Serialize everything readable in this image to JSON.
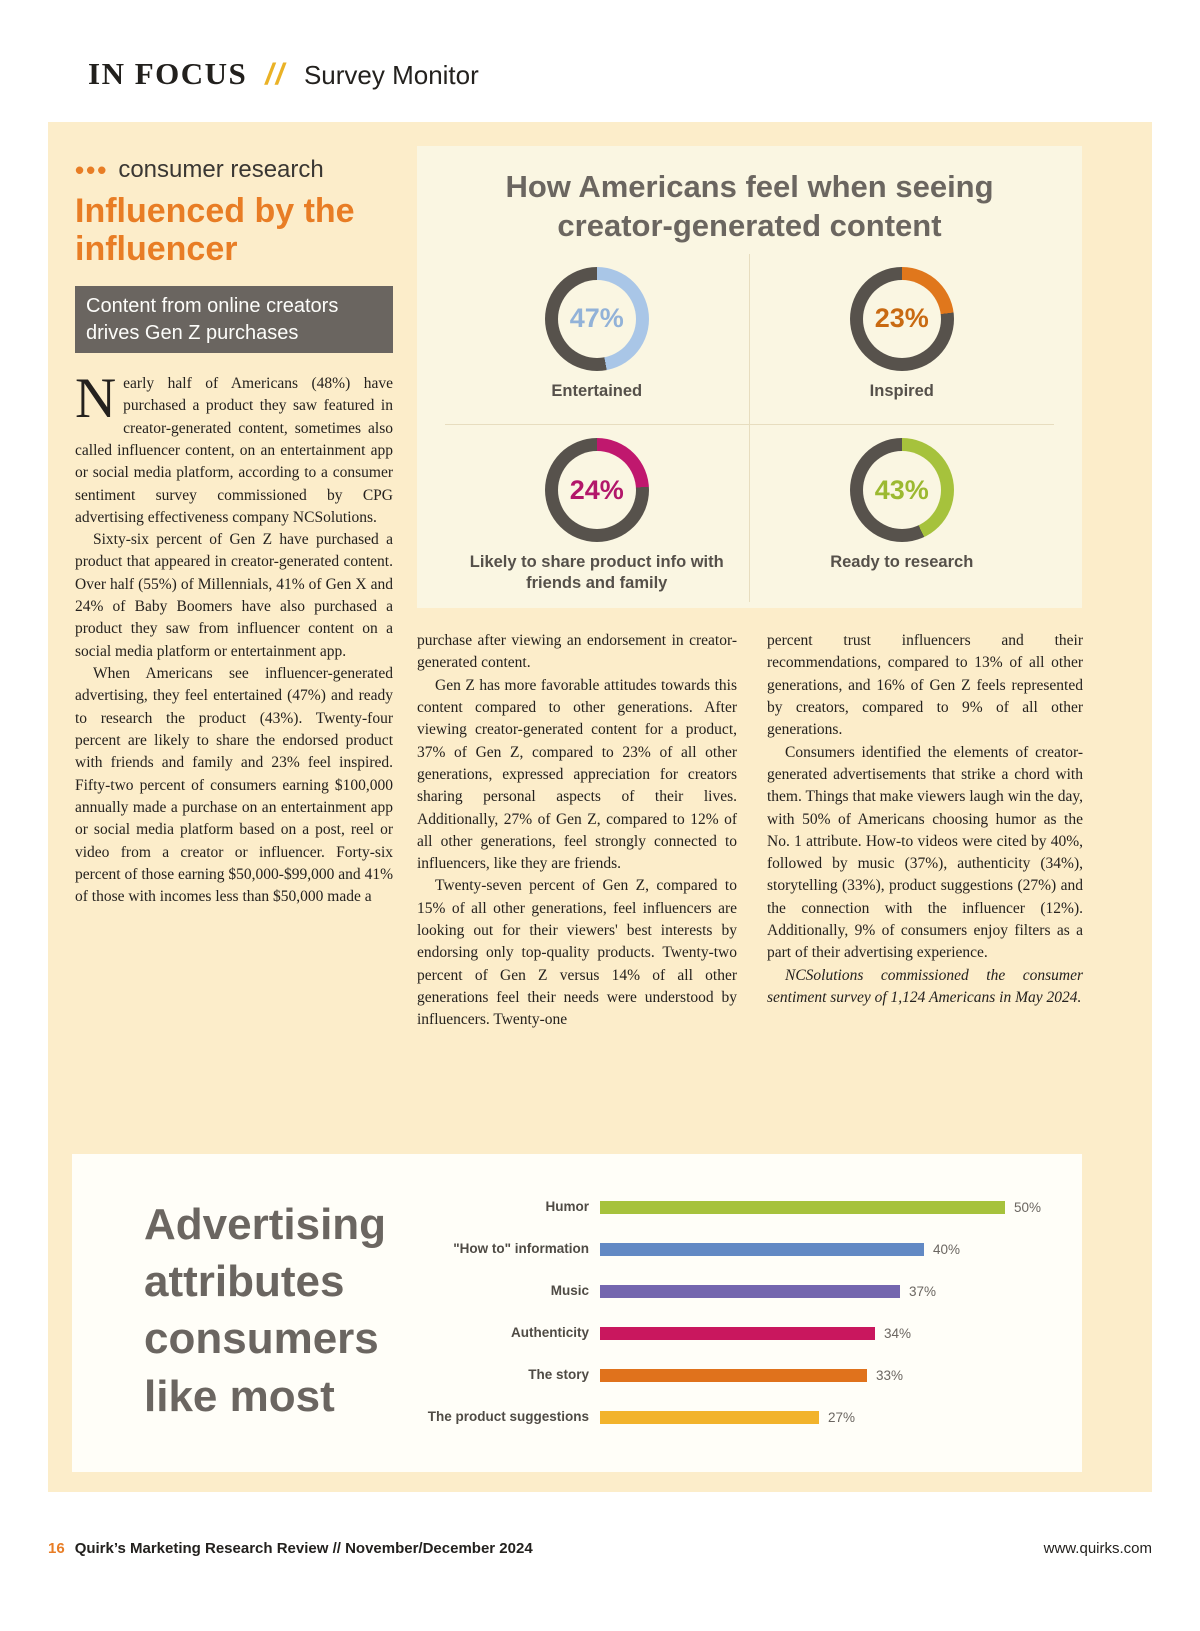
{
  "header": {
    "label": "IN FOCUS",
    "slashes": "//",
    "section": "Survey Monitor"
  },
  "article": {
    "kicker_dots": "•••",
    "kicker": "consumer research",
    "title": "Influenced by the influencer",
    "deck": "Content from online creators drives Gen Z purchases",
    "dropcap": "N",
    "col1_p1": "early half of Americans (48%) have purchased a product they saw featured in creator-generated content, sometimes also called influencer content, on an entertainment app or social media platform, according to a consumer sentiment survey commissioned by CPG advertising effectiveness company NCSolutions.",
    "col1_p2": "Sixty-six percent of Gen Z have purchased a product that appeared in creator-generated content. Over half (55%) of Millennials, 41% of Gen X and 24% of Baby Boomers have also purchased a product they saw from influencer content on a social media platform or entertainment app.",
    "col1_p3": "When Americans see influencer-generated advertising, they feel entertained (47%) and ready to research the product (43%). Twenty-four percent are likely to share the endorsed product with friends and family and 23% feel inspired. Fifty-two percent of consumers earning $100,000 annually made a purchase on an entertainment app or social media platform based on a post, reel or video from a creator or influencer. Forty-six percent of those earning $50,000-$99,000 and 41% of those with incomes less than $50,000 made a",
    "col2_p1": "purchase after viewing an endorsement in creator-generated content.",
    "col2_p2": "Gen Z has more favorable attitudes towards this content compared to other generations. After viewing creator-generated content for a product, 37% of Gen Z, compared to 23% of all other generations, expressed appreciation for creators sharing personal aspects of their lives. Additionally, 27% of Gen Z, compared to 12% of all other generations, feel strongly connected to influencers, like they are friends.",
    "col2_p3": "Twenty-seven percent of Gen Z, compared to 15% of all other generations, feel influencers are looking out for their viewers' best interests by endorsing only top-quality products. Twenty-two percent of Gen Z versus 14% of all other generations feel their needs were understood by influencers. Twenty-one",
    "col3_p1": "percent trust influencers and their recommendations, compared to 13% of all other generations, and 16% of Gen Z feels represented by creators, compared to 9% of all other generations.",
    "col3_p2": "Consumers identified the elements of creator-generated advertisements that strike a chord with them. Things that make viewers laugh win the day, with 50% of Americans choosing humor as the No. 1 attribute. How-to videos were cited by 40%, followed by music (37%), authenticity (34%), storytelling (33%), product suggestions (27%) and the connection with the influencer (12%). Additionally, 9% of consumers enjoy filters as a part of their advertising experience.",
    "col3_note": "NCSolutions commissioned the consumer sentiment survey of 1,124 Americans in May 2024."
  },
  "chart_data": [
    {
      "type": "pie",
      "variant": "donut-grid",
      "title": "How Americans feel when seeing creator-generated content",
      "track_color": "#57524c",
      "slices": [
        {
          "label": "Entertained",
          "value": 47,
          "display": "47%",
          "color": "#a9c6e7",
          "number_color": "#92b2d8"
        },
        {
          "label": "Inspired",
          "value": 23,
          "display": "23%",
          "color": "#e0771c",
          "number_color": "#c96a12"
        },
        {
          "label": "Likely to share product info with friends and family",
          "value": 24,
          "display": "24%",
          "color": "#c0186e",
          "number_color": "#b2176a"
        },
        {
          "label": "Ready to research",
          "value": 43,
          "display": "43%",
          "color": "#a6c23c",
          "number_color": "#9cb931"
        }
      ]
    },
    {
      "type": "bar",
      "orientation": "horizontal",
      "title": "Advertising attributes consumers like most",
      "categories": [
        "Humor",
        "\"How to\" information",
        "Music",
        "Authenticity",
        "The story",
        "The product suggestions"
      ],
      "values": [
        50,
        40,
        37,
        34,
        33,
        27
      ],
      "value_labels": [
        "50%",
        "40%",
        "37%",
        "34%",
        "33%",
        "27%"
      ],
      "unit": "%",
      "xlim": [
        0,
        52
      ],
      "colors": [
        "#a6c23c",
        "#6289c4",
        "#7466ae",
        "#c9175e",
        "#e0721c",
        "#f2b32b"
      ],
      "legend": "none",
      "grid": false
    }
  ],
  "footer": {
    "page_number": "16",
    "text": "Quirk’s Marketing Research Review // November/December 2024",
    "site": "www.quirks.com"
  }
}
